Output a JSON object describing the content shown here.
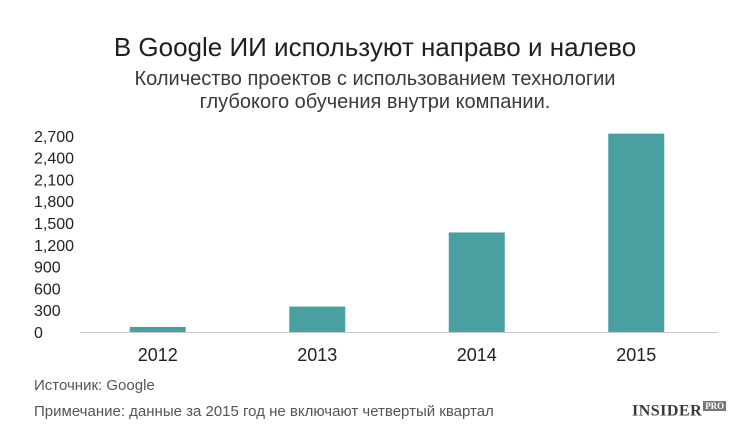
{
  "title": "В Google ИИ используют направо и налево",
  "subtitle_lines": [
    "Количество проектов с использованием технологии",
    "глубокого обучения внутри компании."
  ],
  "source": "Источник: Google",
  "note": "Примечание: данные за 2015 год не включают четвертый квартал",
  "brand": {
    "name": "INSIDER",
    "badge": "PRO"
  },
  "colors": {
    "bar": "#4a9fa0",
    "axis": "#cccccc",
    "text": "#222222"
  },
  "chart_data": {
    "type": "bar",
    "categories": [
      "2012",
      "2013",
      "2014",
      "2015"
    ],
    "values": [
      70,
      350,
      1370,
      2730
    ],
    "ylim": [
      0,
      2900
    ],
    "y_ticks": [
      0,
      300,
      600,
      900,
      1200,
      1500,
      1800,
      2100,
      2400,
      2700
    ],
    "y_tick_labels": [
      "0",
      "300",
      "600",
      "900",
      "1,200",
      "1,500",
      "1,800",
      "2,100",
      "2,400",
      "2,700"
    ],
    "grid": false,
    "legend": "none",
    "xlabel": "",
    "ylabel": ""
  }
}
